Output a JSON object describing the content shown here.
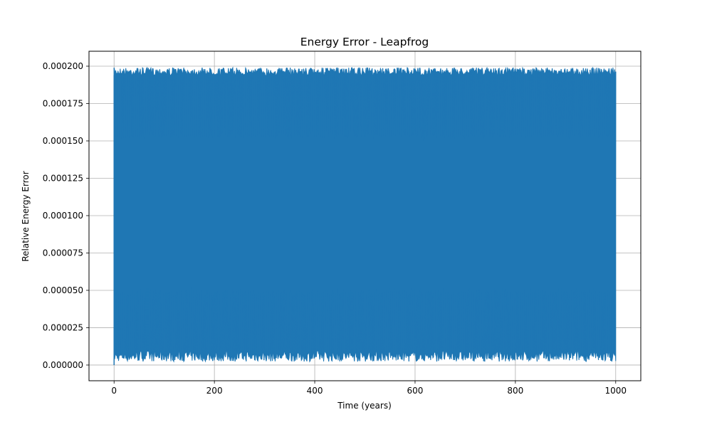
{
  "chart_data": {
    "type": "line",
    "title": "Energy Error - Leapfrog",
    "xlabel": "Time (years)",
    "ylabel": "Relative Energy Error",
    "xlim": [
      -50,
      1050
    ],
    "ylim": [
      -1.05e-05,
      0.00021
    ],
    "x_ticks": [
      0,
      200,
      400,
      600,
      800,
      1000
    ],
    "x_tick_labels": [
      "0",
      "200",
      "400",
      "600",
      "800",
      "1000"
    ],
    "y_ticks": [
      0,
      2.5e-05,
      5e-05,
      7.5e-05,
      0.0001,
      0.000125,
      0.00015,
      0.000175,
      0.0002
    ],
    "y_tick_labels": [
      "0.000000",
      "0.000025",
      "0.000050",
      "0.000075",
      "0.000100",
      "0.000125",
      "0.000150",
      "0.000175",
      "0.000200"
    ],
    "grid": true,
    "series": [
      {
        "color": "#1f77b4",
        "x_range": [
          0,
          1000
        ],
        "description_values": {
          "oscillation_min_approx": 5e-06,
          "oscillation_max_approx": 0.000199
        }
      }
    ]
  }
}
